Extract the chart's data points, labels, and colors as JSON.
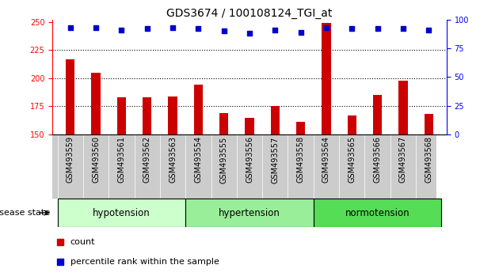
{
  "title": "GDS3674 / 100108124_TGI_at",
  "categories": [
    "GSM493559",
    "GSM493560",
    "GSM493561",
    "GSM493562",
    "GSM493563",
    "GSM493554",
    "GSM493555",
    "GSM493556",
    "GSM493557",
    "GSM493558",
    "GSM493564",
    "GSM493565",
    "GSM493566",
    "GSM493567",
    "GSM493568"
  ],
  "bar_values": [
    217,
    205,
    183,
    183,
    184,
    194,
    169,
    165,
    175,
    161,
    249,
    167,
    185,
    198,
    168
  ],
  "percentile_values": [
    93,
    93,
    91,
    92,
    93,
    92,
    90,
    88,
    91,
    89,
    93,
    92,
    92,
    92,
    91
  ],
  "bar_color": "#cc0000",
  "dot_color": "#0000cc",
  "ylim_left": [
    150,
    252
  ],
  "ylim_right": [
    0,
    100
  ],
  "yticks_left": [
    150,
    175,
    200,
    225,
    250
  ],
  "yticks_right": [
    0,
    25,
    50,
    75,
    100
  ],
  "grid_values": [
    175,
    200,
    225
  ],
  "groups": [
    {
      "label": "hypotension",
      "start": 0,
      "end": 5,
      "color": "#ccffcc"
    },
    {
      "label": "hypertension",
      "start": 5,
      "end": 10,
      "color": "#99ee99"
    },
    {
      "label": "normotension",
      "start": 10,
      "end": 15,
      "color": "#55dd55"
    }
  ],
  "disease_state_label": "disease state",
  "legend_count_label": "count",
  "legend_percentile_label": "percentile rank within the sample",
  "title_fontsize": 10,
  "tick_fontsize": 7,
  "label_fontsize": 8,
  "bar_width": 0.35,
  "tick_area_bg": "#cccccc",
  "group_label_fontsize": 8.5,
  "fig_width": 6.3,
  "fig_height": 3.54
}
